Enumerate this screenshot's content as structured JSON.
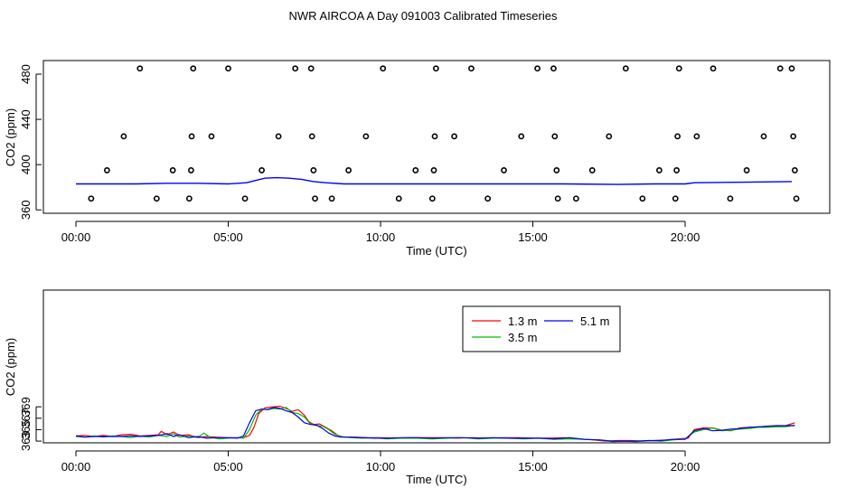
{
  "title": "NWR AIRCOA A  Day 091003  Calibrated Timeseries",
  "chart_data": [
    {
      "type": "scatter",
      "xlabel": "Time (UTC)",
      "ylabel": "CO2 (ppm)",
      "xlim": [
        0,
        24
      ],
      "ylim": [
        357,
        492
      ],
      "x_ticks": [
        0,
        5,
        10,
        15,
        20
      ],
      "x_tick_labels": [
        "00:00",
        "05:00",
        "10:00",
        "15:00",
        "20:00"
      ],
      "y_ticks": [
        360,
        400,
        440,
        480
      ],
      "y_tick_labels": [
        "360",
        "400",
        "440",
        "480"
      ],
      "grid": false,
      "points": [
        {
          "x": 0.5,
          "y": 370
        },
        {
          "x": 1.02,
          "y": 395
        },
        {
          "x": 1.57,
          "y": 425
        },
        {
          "x": 2.1,
          "y": 485
        },
        {
          "x": 2.65,
          "y": 370
        },
        {
          "x": 3.18,
          "y": 395
        },
        {
          "x": 3.72,
          "y": 370
        },
        {
          "x": 3.78,
          "y": 395
        },
        {
          "x": 3.8,
          "y": 425
        },
        {
          "x": 3.85,
          "y": 485
        },
        {
          "x": 4.45,
          "y": 425
        },
        {
          "x": 5.0,
          "y": 485
        },
        {
          "x": 5.55,
          "y": 370
        },
        {
          "x": 6.1,
          "y": 395
        },
        {
          "x": 6.65,
          "y": 425
        },
        {
          "x": 7.2,
          "y": 485
        },
        {
          "x": 7.72,
          "y": 485
        },
        {
          "x": 7.75,
          "y": 425
        },
        {
          "x": 7.8,
          "y": 395
        },
        {
          "x": 7.85,
          "y": 370
        },
        {
          "x": 8.4,
          "y": 370
        },
        {
          "x": 8.95,
          "y": 395
        },
        {
          "x": 9.52,
          "y": 425
        },
        {
          "x": 10.08,
          "y": 485
        },
        {
          "x": 10.6,
          "y": 370
        },
        {
          "x": 11.15,
          "y": 395
        },
        {
          "x": 11.7,
          "y": 370
        },
        {
          "x": 11.75,
          "y": 395
        },
        {
          "x": 11.78,
          "y": 425
        },
        {
          "x": 11.82,
          "y": 485
        },
        {
          "x": 12.42,
          "y": 425
        },
        {
          "x": 12.98,
          "y": 485
        },
        {
          "x": 13.52,
          "y": 370
        },
        {
          "x": 14.05,
          "y": 395
        },
        {
          "x": 14.62,
          "y": 425
        },
        {
          "x": 15.15,
          "y": 485
        },
        {
          "x": 15.68,
          "y": 485
        },
        {
          "x": 15.72,
          "y": 425
        },
        {
          "x": 15.78,
          "y": 395
        },
        {
          "x": 15.82,
          "y": 370
        },
        {
          "x": 16.42,
          "y": 370
        },
        {
          "x": 16.95,
          "y": 395
        },
        {
          "x": 17.5,
          "y": 425
        },
        {
          "x": 18.05,
          "y": 485
        },
        {
          "x": 18.6,
          "y": 370
        },
        {
          "x": 19.15,
          "y": 395
        },
        {
          "x": 19.68,
          "y": 370
        },
        {
          "x": 19.72,
          "y": 395
        },
        {
          "x": 19.75,
          "y": 425
        },
        {
          "x": 19.8,
          "y": 485
        },
        {
          "x": 20.38,
          "y": 425
        },
        {
          "x": 20.92,
          "y": 485
        },
        {
          "x": 21.48,
          "y": 370
        },
        {
          "x": 22.02,
          "y": 395
        },
        {
          "x": 22.58,
          "y": 425
        },
        {
          "x": 23.12,
          "y": 485
        },
        {
          "x": 23.5,
          "y": 485
        },
        {
          "x": 23.55,
          "y": 425
        },
        {
          "x": 23.6,
          "y": 395
        },
        {
          "x": 23.65,
          "y": 370
        }
      ],
      "line_series": [
        {
          "color": "#0000ff",
          "x": [
            0,
            1,
            2,
            3,
            4,
            5,
            5.6,
            5.9,
            6.2,
            6.6,
            7.0,
            7.4,
            7.8,
            8.2,
            8.8,
            10,
            12,
            14,
            16,
            17.8,
            19,
            20,
            20.3,
            22,
            23.5
          ],
          "y": [
            383,
            383,
            383,
            383.5,
            383.5,
            383,
            384,
            386,
            388,
            388.5,
            388,
            387,
            385,
            384,
            383,
            383,
            383,
            383,
            383,
            382.5,
            383,
            383,
            384,
            384.5,
            385
          ]
        }
      ]
    },
    {
      "type": "line",
      "xlabel": "Time (UTC)",
      "ylabel": "CO2 (ppm)",
      "xlim": [
        0,
        24
      ],
      "ylim": [
        362.7,
        389.4
      ],
      "x_ticks": [
        0,
        5,
        10,
        15,
        20
      ],
      "x_tick_labels": [
        "00:00",
        "05:00",
        "10:00",
        "15:00",
        "20:00"
      ],
      "y_ticks": [
        363,
        365,
        367,
        369
      ],
      "y_tick_labels": [
        "363",
        "365",
        "367",
        "369"
      ],
      "grid": false,
      "legend": {
        "placement": "top-center",
        "entries": [
          "1.3 m",
          "5.1 m",
          "3.5 m"
        ]
      },
      "series": [
        {
          "name": "1.3 m",
          "color": "#ff0000",
          "x": [
            0,
            0.3,
            0.6,
            0.9,
            1.2,
            1.5,
            1.8,
            2.1,
            2.4,
            2.7,
            2.8,
            3.0,
            3.2,
            3.4,
            3.7,
            4.0,
            4.3,
            4.6,
            5.0,
            5.3,
            5.5,
            5.7,
            5.85,
            6.0,
            6.2,
            6.5,
            6.7,
            6.9,
            7.1,
            7.3,
            7.5,
            7.65,
            7.8,
            8.0,
            8.2,
            8.4,
            8.6,
            8.8,
            9.2,
            9.6,
            10,
            10.5,
            11,
            11.5,
            12,
            12.5,
            13,
            13.5,
            14,
            14.5,
            15,
            15.5,
            16,
            16.5,
            17,
            17.4,
            17.8,
            18.2,
            18.6,
            19.0,
            19.4,
            19.8,
            20.1,
            20.3,
            20.6,
            20.9,
            21.2,
            21.5,
            21.8,
            22.1,
            22.4,
            22.7,
            23.0,
            23.3,
            23.6
          ],
          "y": [
            363.9,
            364.0,
            363.8,
            364.0,
            363.8,
            364.1,
            364.2,
            363.9,
            364.0,
            364.1,
            364.7,
            364.1,
            364.6,
            364.0,
            364.1,
            363.6,
            363.8,
            363.7,
            363.6,
            363.6,
            363.6,
            364.0,
            365.5,
            367.8,
            368.8,
            369.0,
            369.1,
            368.7,
            368.2,
            368.5,
            367.5,
            366.4,
            365.9,
            366.0,
            365.4,
            364.8,
            364.0,
            363.7,
            363.7,
            363.6,
            363.6,
            363.5,
            363.6,
            363.6,
            363.6,
            363.5,
            363.6,
            363.5,
            363.6,
            363.6,
            363.5,
            363.5,
            363.6,
            363.4,
            363.2,
            363.0,
            363.1,
            363.1,
            363.0,
            363.1,
            363.2,
            363.4,
            363.5,
            365.0,
            365.3,
            365.3,
            364.9,
            364.8,
            365.3,
            365.4,
            365.5,
            365.6,
            365.6,
            365.7,
            366.2
          ]
        },
        {
          "name": "3.5 m",
          "color": "#00bb00",
          "x": [
            0,
            0.3,
            0.6,
            0.9,
            1.2,
            1.5,
            1.8,
            2.1,
            2.4,
            2.7,
            3.0,
            3.2,
            3.4,
            3.7,
            4.0,
            4.2,
            4.4,
            4.7,
            5.0,
            5.3,
            5.5,
            5.7,
            5.9,
            6.1,
            6.3,
            6.5,
            6.7,
            6.9,
            7.1,
            7.3,
            7.5,
            7.7,
            7.9,
            8.1,
            8.3,
            8.5,
            8.7,
            9.0,
            9.4,
            9.8,
            10.2,
            10.7,
            11.2,
            11.7,
            12.2,
            12.7,
            13.2,
            13.7,
            14.2,
            14.7,
            15.2,
            15.7,
            16.2,
            16.7,
            17.2,
            17.6,
            18.0,
            18.4,
            18.8,
            19.2,
            19.6,
            20.0,
            20.3,
            20.6,
            20.9,
            21.2,
            21.5,
            21.8,
            22.1,
            22.4,
            22.7,
            23.0,
            23.3,
            23.6
          ],
          "y": [
            363.8,
            363.7,
            363.9,
            363.7,
            363.9,
            363.8,
            363.6,
            363.9,
            363.7,
            364.0,
            363.8,
            364.3,
            363.7,
            363.9,
            363.6,
            364.4,
            363.7,
            363.4,
            363.5,
            363.6,
            363.5,
            365.0,
            367.5,
            368.6,
            368.5,
            368.7,
            368.6,
            368.9,
            368.0,
            367.8,
            367.2,
            366.0,
            365.7,
            365.6,
            365.0,
            364.2,
            363.8,
            363.6,
            363.5,
            363.6,
            363.4,
            363.5,
            363.5,
            363.4,
            363.5,
            363.6,
            363.4,
            363.5,
            363.5,
            363.4,
            363.5,
            363.3,
            363.4,
            363.3,
            363.2,
            362.9,
            363.0,
            362.9,
            363.1,
            363.0,
            363.2,
            363.4,
            364.6,
            365.0,
            365.3,
            364.8,
            364.9,
            365.1,
            365.2,
            365.4,
            365.4,
            365.5,
            365.5,
            365.8
          ]
        },
        {
          "name": "5.1 m",
          "color": "#0000ee",
          "x": [
            0,
            0.3,
            0.6,
            0.9,
            1.2,
            1.5,
            1.8,
            2.1,
            2.4,
            2.7,
            3.0,
            3.2,
            3.4,
            3.7,
            4.0,
            4.3,
            4.6,
            5.0,
            5.3,
            5.5,
            5.7,
            5.9,
            6.1,
            6.3,
            6.5,
            6.7,
            6.9,
            7.1,
            7.3,
            7.5,
            7.7,
            7.9,
            8.1,
            8.3,
            8.5,
            8.7,
            9.0,
            9.4,
            9.8,
            10.2,
            10.7,
            11.2,
            11.7,
            12.2,
            12.7,
            13.2,
            13.7,
            14.2,
            14.7,
            15.2,
            15.7,
            16.2,
            16.7,
            17.2,
            17.6,
            18.0,
            18.4,
            18.8,
            19.2,
            19.6,
            20.0,
            20.3,
            20.6,
            20.9,
            21.2,
            21.5,
            21.8,
            22.1,
            22.4,
            22.7,
            23.0,
            23.3,
            23.6
          ],
          "y": [
            363.9,
            363.7,
            363.8,
            363.8,
            363.8,
            363.8,
            363.9,
            363.8,
            363.9,
            364.0,
            364.3,
            363.8,
            364.1,
            363.6,
            363.8,
            363.5,
            363.6,
            363.6,
            363.5,
            363.9,
            366.2,
            368.3,
            368.6,
            368.5,
            368.9,
            368.7,
            368.3,
            368.0,
            367.2,
            366.2,
            365.9,
            365.8,
            365.2,
            364.4,
            363.9,
            363.7,
            363.7,
            363.6,
            363.5,
            363.5,
            363.6,
            363.6,
            363.5,
            363.6,
            363.6,
            363.5,
            363.6,
            363.5,
            363.5,
            363.5,
            363.4,
            363.6,
            363.3,
            363.2,
            363.0,
            363.0,
            363.0,
            363.1,
            363.1,
            363.3,
            363.3,
            364.8,
            365.2,
            364.8,
            364.9,
            365.1,
            365.2,
            365.4,
            365.5,
            365.6,
            365.7,
            365.7,
            365.7
          ]
        }
      ]
    }
  ]
}
